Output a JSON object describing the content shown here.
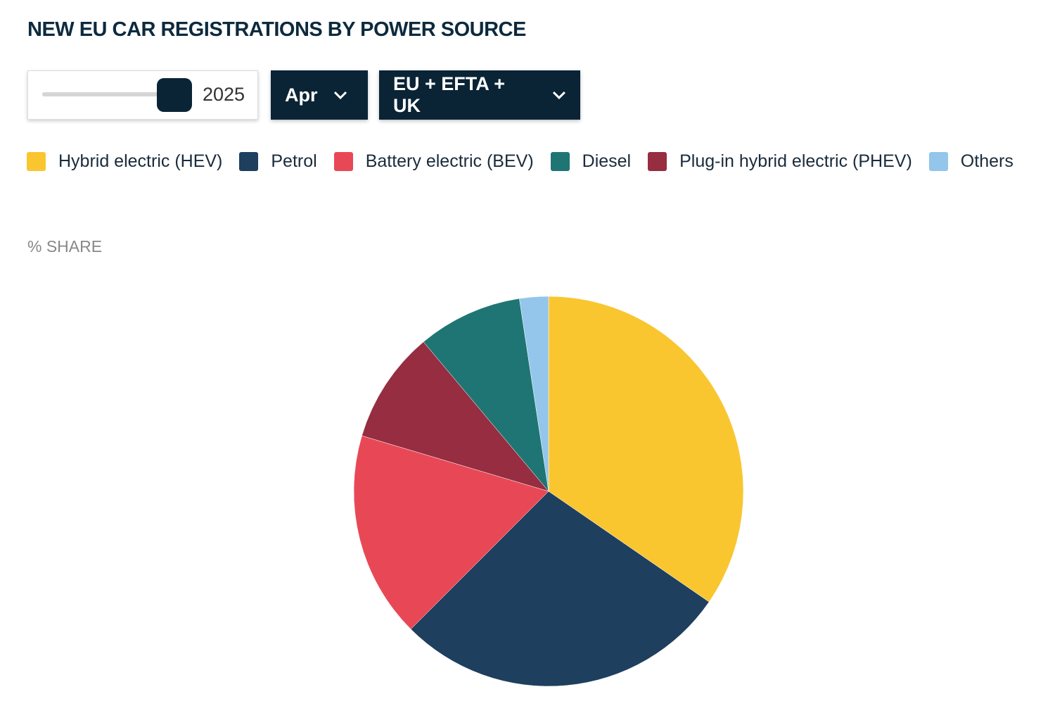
{
  "controls": {
    "year": "2025",
    "month": "Apr",
    "region": "EU + EFTA + UK"
  },
  "chart_data": {
    "type": "pie",
    "title": "NEW EU CAR REGISTRATIONS BY POWER SOURCE",
    "subtitle": "% SHARE",
    "categories": [
      "Hybrid electric (HEV)",
      "Petrol",
      "Battery electric (BEV)",
      "Plug-in hybrid electric (PHEV)",
      "Diesel",
      "Others"
    ],
    "values": [
      34.6,
      27.9,
      17.1,
      9.3,
      8.7,
      2.4
    ],
    "colors": [
      "#f9c630",
      "#1e3f5e",
      "#e84855",
      "#962d40",
      "#1f7574",
      "#93c6ea"
    ]
  }
}
